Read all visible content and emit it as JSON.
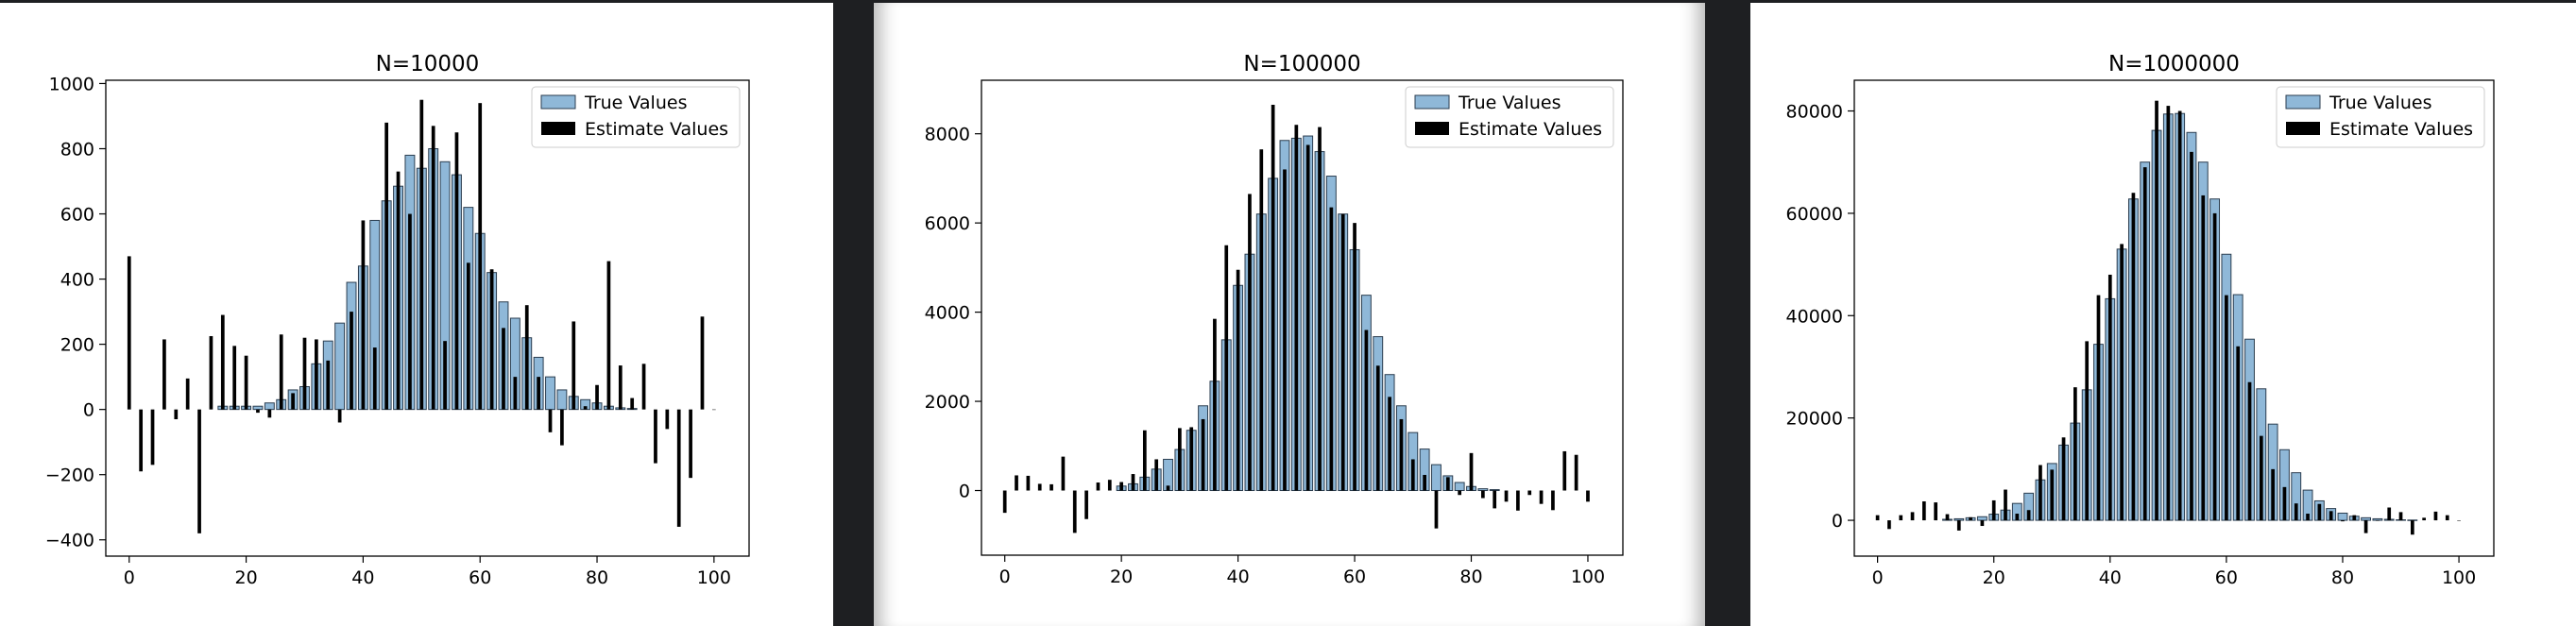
{
  "colors": {
    "true_fill": "#8fb8d8",
    "true_edge": "#2b3d4f",
    "estimate_fill": "#000000",
    "window_bg": "#1e1f22"
  },
  "chart_data": [
    {
      "type": "bar",
      "title": "N=10000",
      "legend": {
        "placement": "top-right",
        "entries": [
          "True Values",
          "Estimate Values"
        ]
      },
      "xlim": [
        -4,
        106
      ],
      "ylim": [
        -450,
        1010
      ],
      "xticks": [
        0,
        20,
        40,
        60,
        80,
        100
      ],
      "yticks": [
        -400,
        -200,
        0,
        200,
        400,
        600,
        800,
        1000
      ],
      "grid": false,
      "series": [
        {
          "name": "True Values",
          "x": [
            16,
            18,
            20,
            22,
            24,
            26,
            28,
            30,
            32,
            34,
            36,
            38,
            40,
            42,
            44,
            46,
            48,
            50,
            52,
            54,
            56,
            58,
            60,
            62,
            64,
            66,
            68,
            70,
            72,
            74,
            76,
            78,
            80,
            82,
            84,
            86
          ],
          "values": [
            10,
            10,
            10,
            10,
            20,
            30,
            60,
            70,
            140,
            210,
            265,
            390,
            440,
            580,
            640,
            685,
            780,
            740,
            800,
            760,
            720,
            620,
            540,
            420,
            330,
            280,
            220,
            160,
            100,
            60,
            40,
            30,
            20,
            10,
            5,
            3
          ]
        },
        {
          "name": "Estimate Values",
          "x": [
            0,
            2,
            4,
            6,
            8,
            10,
            12,
            14,
            16,
            18,
            20,
            22,
            24,
            26,
            28,
            30,
            32,
            34,
            36,
            38,
            40,
            42,
            44,
            46,
            48,
            50,
            52,
            54,
            56,
            58,
            60,
            62,
            64,
            66,
            68,
            70,
            72,
            74,
            76,
            78,
            80,
            82,
            84,
            86,
            88,
            90,
            92,
            94,
            96,
            98,
            100
          ],
          "values": [
            470,
            -190,
            -170,
            215,
            -30,
            95,
            -380,
            225,
            290,
            195,
            165,
            -10,
            -25,
            230,
            50,
            220,
            215,
            150,
            -40,
            300,
            580,
            190,
            880,
            730,
            600,
            950,
            870,
            210,
            850,
            450,
            940,
            430,
            250,
            100,
            320,
            100,
            -70,
            -110,
            270,
            10,
            75,
            455,
            135,
            35,
            140,
            -165,
            -60,
            -360,
            -210,
            285,
            0
          ]
        }
      ]
    },
    {
      "type": "bar",
      "title": "N=100000",
      "legend": {
        "placement": "top-right",
        "entries": [
          "True Values",
          "Estimate Values"
        ]
      },
      "xlim": [
        -4,
        106
      ],
      "ylim": [
        -1450,
        9200
      ],
      "xticks": [
        0,
        20,
        40,
        60,
        80,
        100
      ],
      "yticks": [
        0,
        2000,
        4000,
        6000,
        8000
      ],
      "grid": false,
      "series": [
        {
          "name": "True Values",
          "x": [
            20,
            22,
            24,
            26,
            28,
            30,
            32,
            34,
            36,
            38,
            40,
            42,
            44,
            46,
            48,
            50,
            52,
            54,
            56,
            58,
            60,
            62,
            64,
            66,
            68,
            70,
            72,
            74,
            76,
            78,
            80,
            82,
            84
          ],
          "values": [
            100,
            150,
            300,
            480,
            700,
            920,
            1350,
            1900,
            2450,
            3380,
            4600,
            5300,
            6200,
            7000,
            7850,
            7900,
            7950,
            7600,
            7050,
            6200,
            5400,
            4380,
            3450,
            2600,
            1900,
            1300,
            930,
            580,
            330,
            180,
            90,
            40,
            20
          ]
        },
        {
          "name": "Estimate Values",
          "x": [
            0,
            2,
            4,
            6,
            8,
            10,
            12,
            14,
            16,
            18,
            20,
            22,
            24,
            26,
            28,
            30,
            32,
            34,
            36,
            38,
            40,
            42,
            44,
            46,
            48,
            50,
            52,
            54,
            56,
            58,
            60,
            62,
            64,
            66,
            68,
            70,
            72,
            74,
            76,
            78,
            80,
            82,
            84,
            86,
            88,
            90,
            92,
            94,
            96,
            98,
            100
          ],
          "values": [
            -500,
            340,
            330,
            150,
            140,
            760,
            -950,
            -640,
            180,
            240,
            190,
            370,
            1350,
            700,
            110,
            1400,
            1420,
            1600,
            3850,
            5500,
            4950,
            6650,
            7650,
            8650,
            7200,
            8200,
            7750,
            8150,
            6350,
            6200,
            6000,
            3600,
            2800,
            2100,
            1600,
            700,
            350,
            -850,
            300,
            -100,
            840,
            -170,
            -400,
            -250,
            -450,
            -100,
            -300,
            -440,
            880,
            800,
            -250
          ]
        }
      ]
    },
    {
      "type": "bar",
      "title": "N=1000000",
      "legend": {
        "placement": "top-right",
        "entries": [
          "True Values",
          "Estimate Values"
        ]
      },
      "xlim": [
        -4,
        106
      ],
      "ylim": [
        -7000,
        86000
      ],
      "xticks": [
        0,
        20,
        40,
        60,
        80,
        100
      ],
      "yticks": [
        0,
        20000,
        40000,
        60000,
        80000
      ],
      "grid": false,
      "series": [
        {
          "name": "True Values",
          "x": [
            12,
            14,
            16,
            18,
            20,
            22,
            24,
            26,
            28,
            30,
            32,
            34,
            36,
            38,
            40,
            42,
            44,
            46,
            48,
            50,
            52,
            54,
            56,
            58,
            60,
            62,
            64,
            66,
            68,
            70,
            72,
            74,
            76,
            78,
            80,
            82,
            84,
            86,
            88,
            90,
            92
          ],
          "values": [
            200,
            300,
            500,
            700,
            1200,
            2000,
            3300,
            5300,
            7900,
            11100,
            14700,
            19000,
            25500,
            34400,
            43300,
            53000,
            62800,
            70000,
            76200,
            79400,
            79500,
            75800,
            70000,
            62800,
            52000,
            44100,
            35400,
            25700,
            18800,
            13800,
            9300,
            5900,
            3800,
            2300,
            1400,
            800,
            500,
            300,
            200,
            100,
            50
          ]
        },
        {
          "name": "Estimate Values",
          "x": [
            0,
            2,
            4,
            6,
            8,
            10,
            12,
            14,
            16,
            18,
            20,
            22,
            24,
            26,
            28,
            30,
            32,
            34,
            36,
            38,
            40,
            42,
            44,
            46,
            48,
            50,
            52,
            54,
            56,
            58,
            60,
            62,
            64,
            66,
            68,
            70,
            72,
            74,
            76,
            78,
            80,
            82,
            84,
            86,
            88,
            90,
            92,
            94,
            96,
            98,
            100
          ],
          "values": [
            1000,
            -1700,
            1000,
            1600,
            3700,
            3500,
            1200,
            -2000,
            600,
            -1100,
            3900,
            6000,
            1300,
            2000,
            10800,
            9900,
            16200,
            26000,
            35000,
            44000,
            48000,
            54000,
            64000,
            69000,
            82000,
            81000,
            80000,
            72000,
            63500,
            60000,
            44000,
            34000,
            27000,
            16500,
            10000,
            6500,
            3300,
            1300,
            3200,
            1800,
            -200,
            1000,
            -2500,
            -100,
            2500,
            1600,
            -2800,
            500,
            1700,
            1000,
            0
          ]
        }
      ]
    }
  ]
}
